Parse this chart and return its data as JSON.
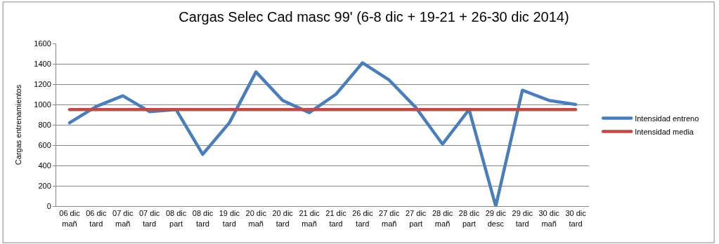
{
  "chart_data": {
    "type": "line",
    "title": "Cargas Selec Cad masc 99' (6-8 dic + 19-21 + 26-30 dic 2014)",
    "ylabel": "Cargas entrenamientos",
    "categories": [
      "06 dic mañ",
      "06 dic tard",
      "07 dic mañ",
      "07 dic tard",
      "08 dic part",
      "08 dic tard",
      "19 dic tard",
      "20 dic mañ",
      "20 dic tard",
      "21 dic mañ",
      "21 dic tard",
      "26 dic tard",
      "27 dic mañ",
      "27 dic part",
      "28 dic mañ",
      "28 dic part",
      "29 dic desc",
      "29 dic tard",
      "30 dic mañ",
      "30 dic tard"
    ],
    "series": [
      {
        "name": "Intensidad entreno",
        "color": "#4a7ebb",
        "values": [
          820,
          980,
          1085,
          930,
          950,
          510,
          820,
          1320,
          1040,
          920,
          1100,
          1410,
          1240,
          970,
          610,
          950,
          0,
          1140,
          1040,
          1000
        ]
      },
      {
        "name": "Intensidad media",
        "color": "#be4b48",
        "values": [
          950,
          950,
          950,
          950,
          950,
          950,
          950,
          950,
          950,
          950,
          950,
          950,
          950,
          950,
          950,
          950,
          950,
          950,
          950,
          950
        ]
      }
    ],
    "ylim": [
      0,
      1600
    ],
    "yticks": [
      0,
      200,
      400,
      600,
      800,
      1000,
      1200,
      1400,
      1600
    ],
    "grid": "y",
    "legend": "right",
    "marker": "none",
    "line_style": "solid"
  }
}
